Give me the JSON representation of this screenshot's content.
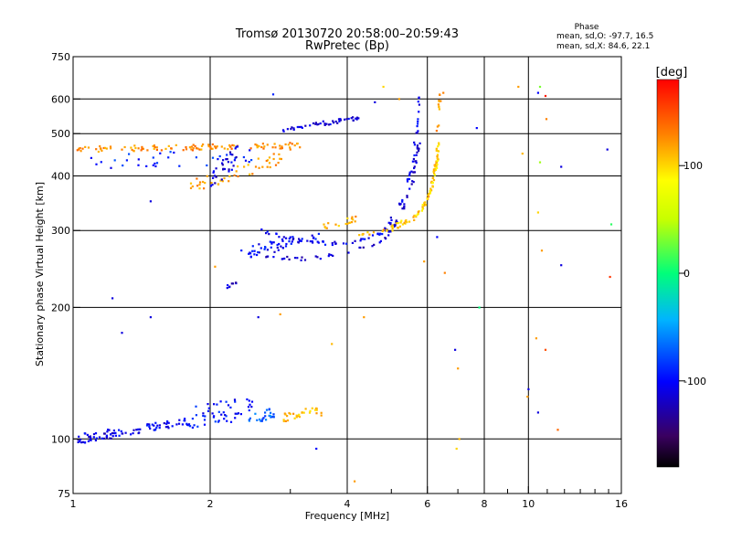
{
  "chart_data": {
    "type": "scatter",
    "title": "Tromsø 20130720 20:58:00–20:59:43",
    "subtitle": "RwPretec (Bp)",
    "xlabel": "Frequency [MHz]",
    "ylabel": "Stationary phase Virtual Height [km]",
    "x_scale": "log",
    "y_scale": "log",
    "xlim": [
      1,
      16
    ],
    "ylim": [
      75,
      750
    ],
    "x_ticks": [
      1,
      2,
      4,
      6,
      8,
      10,
      16
    ],
    "x_tick_labels": [
      "1",
      "2",
      "4",
      "6",
      "8",
      "10",
      "16"
    ],
    "x_minor_ticks": [
      3,
      5,
      7,
      9,
      11,
      12,
      13,
      14,
      15
    ],
    "y_ticks": [
      75,
      100,
      200,
      300,
      400,
      500,
      600,
      750
    ],
    "y_tick_labels": [
      "75",
      "100",
      "200",
      "300",
      "400",
      "500",
      "600",
      "750"
    ],
    "x_gridlines": [
      2,
      4,
      6,
      8,
      10
    ],
    "y_gridlines": [
      100,
      200,
      300,
      400,
      500,
      600
    ],
    "grid": true,
    "stats": {
      "heading": "Phase",
      "line_o": "mean, sd,O:  -97.7, 16.5",
      "line_x": "mean, sd,X:  84.6, 22.1"
    },
    "colorbar": {
      "label": "[deg]",
      "range": [
        -180,
        180
      ],
      "ticks": [
        100,
        0,
        -100
      ],
      "tick_labels": [
        "100",
        "0",
        "-100"
      ],
      "placement": "right"
    },
    "clusters": [
      {
        "f0": 1.02,
        "f1": 1.3,
        "h0": 100,
        "h1": 104,
        "phase": -110,
        "n": 50,
        "jx": 0.008,
        "jy": 0.025
      },
      {
        "f0": 1.3,
        "f1": 1.8,
        "h0": 104,
        "h1": 110,
        "phase": -105,
        "n": 45,
        "jx": 0.006,
        "jy": 0.02
      },
      {
        "f0": 1.8,
        "f1": 2.5,
        "h0": 112,
        "h1": 118,
        "phase": -95,
        "n": 50,
        "jx": 0.01,
        "jy": 0.06
      },
      {
        "f0": 2.4,
        "f1": 2.8,
        "h0": 110,
        "h1": 116,
        "phase": -70,
        "n": 25,
        "jx": 0.01,
        "jy": 0.03
      },
      {
        "f0": 2.9,
        "f1": 3.5,
        "h0": 112,
        "h1": 116,
        "phase": 110,
        "n": 30,
        "jx": 0.008,
        "jy": 0.025
      },
      {
        "f0": 1.02,
        "f1": 3.2,
        "h0": 460,
        "h1": 470,
        "phase": 125,
        "n": 110,
        "jx": 0.01,
        "jy": 0.015
      },
      {
        "f0": 1.1,
        "f1": 2.6,
        "h0": 430,
        "h1": 445,
        "phase": -90,
        "n": 35,
        "jx": 0.01,
        "jy": 0.04
      },
      {
        "f0": 1.8,
        "f1": 2.9,
        "h0": 380,
        "h1": 440,
        "phase": 120,
        "n": 45,
        "jx": 0.01,
        "jy": 0.04
      },
      {
        "f0": 2.0,
        "f1": 2.3,
        "h0": 390,
        "h1": 450,
        "phase": -110,
        "n": 30,
        "jx": 0.01,
        "jy": 0.05
      },
      {
        "f0": 2.9,
        "f1": 4.3,
        "h0": 510,
        "h1": 545,
        "phase": -108,
        "n": 45,
        "jx": 0.006,
        "jy": 0.012
      },
      {
        "f0": 2.35,
        "f1": 3.5,
        "h0": 265,
        "h1": 292,
        "phase": -100,
        "n": 55,
        "jx": 0.01,
        "jy": 0.03
      },
      {
        "f0": 3.5,
        "f1": 4.2,
        "h0": 305,
        "h1": 320,
        "phase": 115,
        "n": 18,
        "jx": 0.01,
        "jy": 0.02
      },
      {
        "f0": 2.1,
        "f1": 2.3,
        "h0": 220,
        "h1": 230,
        "phase": -115,
        "n": 8,
        "jx": 0.006,
        "jy": 0.01
      }
    ],
    "traces": [
      {
        "phase": -105,
        "n": 80,
        "pts": [
          [
            2.6,
            300
          ],
          [
            3.2,
            282
          ],
          [
            4.0,
            280
          ],
          [
            4.8,
            296
          ],
          [
            5.3,
            350
          ],
          [
            5.55,
            420
          ],
          [
            5.7,
            520
          ],
          [
            5.78,
            620
          ]
        ]
      },
      {
        "phase": -115,
        "n": 70,
        "pts": [
          [
            2.6,
            262
          ],
          [
            3.2,
            258
          ],
          [
            4.0,
            265
          ],
          [
            4.8,
            285
          ],
          [
            5.3,
            330
          ],
          [
            5.6,
            400
          ],
          [
            5.75,
            480
          ]
        ]
      },
      {
        "phase": 110,
        "n": 70,
        "pts": [
          [
            4.2,
            292
          ],
          [
            5.0,
            300
          ],
          [
            5.6,
            320
          ],
          [
            6.0,
            350
          ],
          [
            6.2,
            400
          ],
          [
            6.3,
            460
          ]
        ]
      },
      {
        "phase": 95,
        "n": 40,
        "pts": [
          [
            5.0,
            305
          ],
          [
            5.8,
            330
          ],
          [
            6.15,
            380
          ],
          [
            6.3,
            430
          ],
          [
            6.35,
            480
          ]
        ]
      },
      {
        "phase": 120,
        "n": 12,
        "pts": [
          [
            6.3,
            500
          ],
          [
            6.35,
            560
          ],
          [
            6.4,
            620
          ]
        ]
      }
    ],
    "scatter": [
      [
        2.75,
        615,
        -90
      ],
      [
        3.0,
        460,
        130
      ],
      [
        1.22,
        210,
        -110
      ],
      [
        1.48,
        190,
        -110
      ],
      [
        1.28,
        175,
        -110
      ],
      [
        1.48,
        350,
        -110
      ],
      [
        2.05,
        248,
        120
      ],
      [
        2.55,
        190,
        -110
      ],
      [
        2.85,
        193,
        120
      ],
      [
        3.42,
        95,
        -100
      ],
      [
        3.7,
        165,
        110
      ],
      [
        4.15,
        80,
        120
      ],
      [
        4.35,
        190,
        120
      ],
      [
        4.6,
        590,
        -110
      ],
      [
        4.8,
        640,
        100
      ],
      [
        5.2,
        600,
        120
      ],
      [
        5.9,
        255,
        120
      ],
      [
        6.3,
        290,
        -100
      ],
      [
        6.5,
        620,
        130
      ],
      [
        6.55,
        240,
        130
      ],
      [
        6.9,
        160,
        -110
      ],
      [
        7.0,
        145,
        120
      ],
      [
        7.05,
        100,
        110
      ],
      [
        6.95,
        95,
        100
      ],
      [
        7.7,
        515,
        -100
      ],
      [
        7.8,
        200,
        0
      ],
      [
        9.5,
        640,
        120
      ],
      [
        9.7,
        450,
        110
      ],
      [
        10.0,
        130,
        -110
      ],
      [
        9.95,
        125,
        120
      ],
      [
        10.5,
        620,
        -100
      ],
      [
        10.6,
        640,
        30
      ],
      [
        10.9,
        610,
        170
      ],
      [
        10.95,
        540,
        130
      ],
      [
        10.6,
        430,
        40
      ],
      [
        10.5,
        330,
        100
      ],
      [
        10.7,
        270,
        120
      ],
      [
        10.4,
        170,
        120
      ],
      [
        10.5,
        115,
        -110
      ],
      [
        10.9,
        160,
        150
      ],
      [
        11.8,
        420,
        -110
      ],
      [
        11.8,
        250,
        -110
      ],
      [
        11.6,
        105,
        140
      ],
      [
        14.9,
        460,
        -110
      ],
      [
        15.2,
        310,
        10
      ],
      [
        15.1,
        235,
        160
      ]
    ]
  }
}
